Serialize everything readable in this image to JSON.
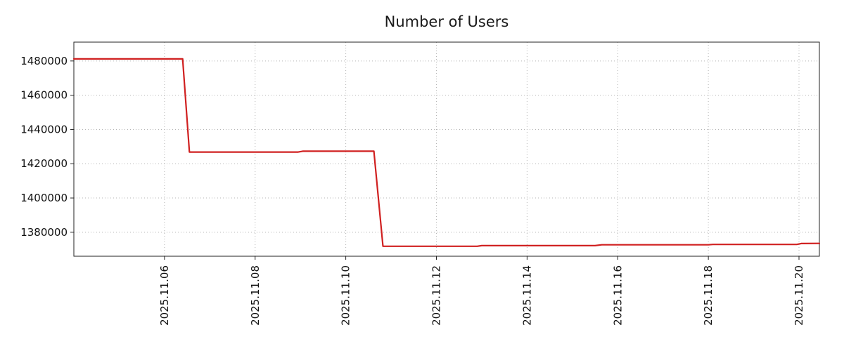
{
  "chart_data": {
    "type": "line",
    "title": "Number of Users",
    "grid": "dotted",
    "legend": "none",
    "line_color": "#d02020",
    "background_color": "#ffffff",
    "x_axis": {
      "label": "",
      "range": [
        4.0,
        20.45
      ],
      "ticks": [
        6,
        8,
        10,
        12,
        14,
        16,
        18,
        20
      ],
      "tick_labels": [
        "2025.11.06",
        "2025.11.08",
        "2025.11.10",
        "2025.11.12",
        "2025.11.14",
        "2025.11.16",
        "2025.11.18",
        "2025.11.20"
      ],
      "tick_label_rotation": 90
    },
    "y_axis": {
      "label": "",
      "range": [
        1366000,
        1491000
      ],
      "ticks": [
        1380000,
        1400000,
        1420000,
        1440000,
        1460000,
        1480000
      ],
      "tick_labels": [
        "1380000",
        "1400000",
        "1420000",
        "1440000",
        "1460000",
        "1480000"
      ]
    },
    "series": [
      {
        "name": "users",
        "color": "#d02020",
        "points": [
          [
            4.0,
            1481200
          ],
          [
            6.4,
            1481200
          ],
          [
            6.55,
            1426800
          ],
          [
            8.95,
            1426800
          ],
          [
            9.05,
            1427300
          ],
          [
            10.62,
            1427300
          ],
          [
            10.82,
            1371800
          ],
          [
            12.9,
            1371800
          ],
          [
            13.0,
            1372200
          ],
          [
            15.5,
            1372200
          ],
          [
            15.65,
            1372700
          ],
          [
            18.0,
            1372700
          ],
          [
            18.1,
            1372900
          ],
          [
            19.95,
            1372900
          ],
          [
            20.05,
            1373400
          ],
          [
            20.45,
            1373500
          ]
        ]
      }
    ]
  }
}
